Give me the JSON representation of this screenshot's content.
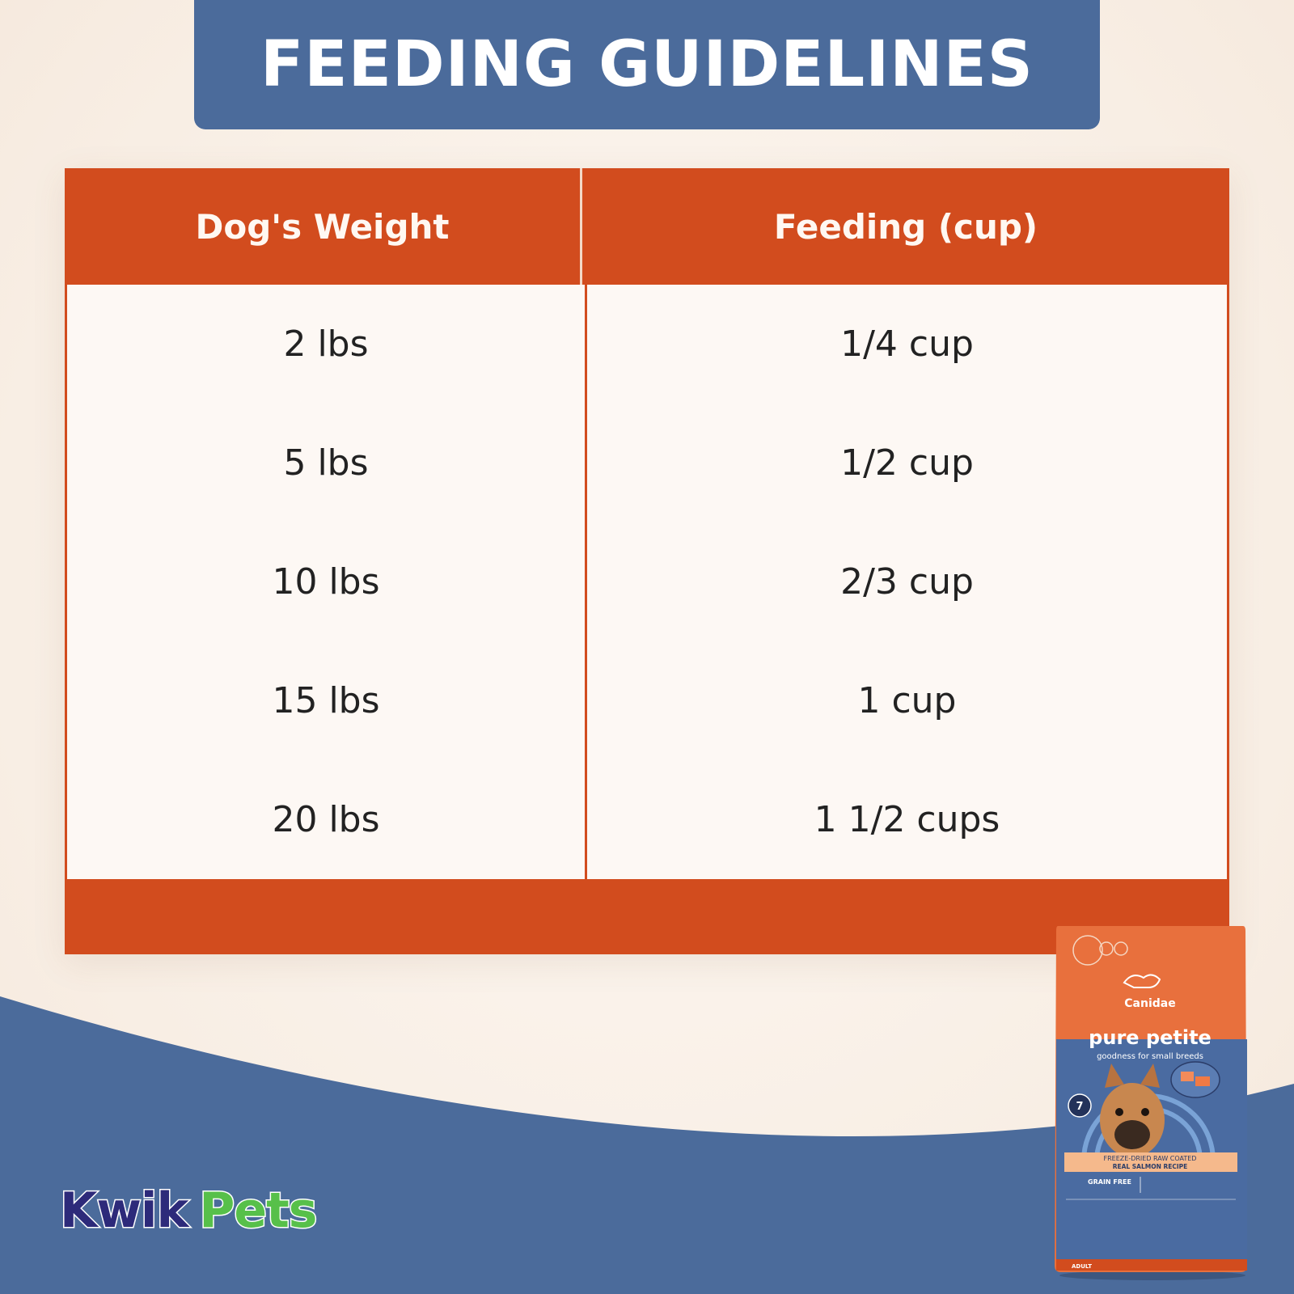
{
  "title": "FEEDING GUIDELINES",
  "table": {
    "headers": [
      "Dog's Weight",
      "Feeding (cup)"
    ],
    "rows": [
      {
        "weight": "2 lbs",
        "feeding": "1/4 cup"
      },
      {
        "weight": "5 lbs",
        "feeding": "1/2 cup"
      },
      {
        "weight": "10 lbs",
        "feeding": "2/3 cup"
      },
      {
        "weight": "15 lbs",
        "feeding": "1 cup"
      },
      {
        "weight": "20 lbs",
        "feeding": "1 1/2 cups"
      }
    ]
  },
  "brand_logo": {
    "part1": "Kwik",
    "part2": "Pets"
  },
  "product": {
    "brand": "Canidae",
    "name": "pure petite",
    "tagline": "goodness for small breeds",
    "recipe_line1": "FREEZE-DRIED RAW COATED",
    "recipe_line2": "REAL SALMON RECIPE",
    "claim": "GRAIN FREE",
    "ingredient_count": "7",
    "life_stage": "ADULT"
  },
  "colors": {
    "banner_blue": "#4b6b9b",
    "table_orange": "#d24c1e",
    "cell_bg": "#fdf8f4",
    "logo_navy": "#2d2a7a",
    "logo_green": "#57c04a"
  }
}
